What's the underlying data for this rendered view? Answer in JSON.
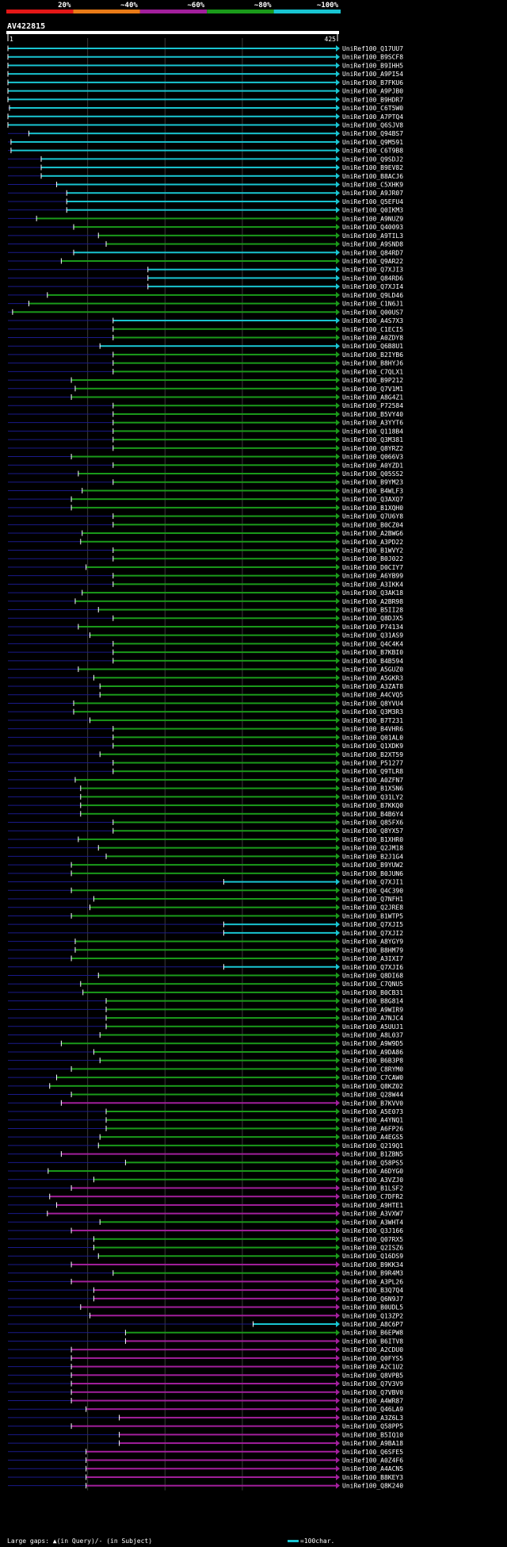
{
  "chart_data": {
    "type": "alignment-overview",
    "title": "AV422815",
    "query_length": 425,
    "axis_start_label": "1",
    "axis_end_label": "425",
    "scale_legend": {
      "label": "=100char.",
      "color": "#19c5d2"
    },
    "identity_colors": [
      {
        "label": "20%",
        "color": "#e41717"
      },
      {
        "label": "~40%",
        "color": "#e87a17"
      },
      {
        "label": "~60%",
        "color": "#a21f9c"
      },
      {
        "label": "~80%",
        "color": "#1a9a1a"
      },
      {
        "label": "~100%",
        "color": "#19c5d2"
      }
    ],
    "legend_text": "Large gaps: ▲(in Query)/- (in Subject)",
    "hits": [
      {
        "id": "UniRef100_Q17UU7",
        "s": 1,
        "e": 425,
        "c": "c"
      },
      {
        "id": "UniRef100_B9SCF8",
        "s": 1,
        "e": 425,
        "c": "c"
      },
      {
        "id": "UniRef100_B9IHH5",
        "s": 1,
        "e": 425,
        "c": "c"
      },
      {
        "id": "UniRef100_A9PI54",
        "s": 1,
        "e": 425,
        "c": "c"
      },
      {
        "id": "UniRef100_B7FKU6",
        "s": 1,
        "e": 425,
        "c": "c"
      },
      {
        "id": "UniRef100_A9PJB0",
        "s": 1,
        "e": 425,
        "c": "c"
      },
      {
        "id": "UniRef100_B9HDR7",
        "s": 1,
        "e": 425,
        "c": "c"
      },
      {
        "id": "UniRef100_C6T5W0",
        "s": 3,
        "e": 425,
        "c": "c"
      },
      {
        "id": "UniRef100_A7PTQ4",
        "s": 1,
        "e": 425,
        "c": "c"
      },
      {
        "id": "UniRef100_Q6SJV8",
        "s": 1,
        "e": 425,
        "c": "c"
      },
      {
        "id": "UniRef100_Q94BS7",
        "s": 28,
        "e": 425,
        "c": "c"
      },
      {
        "id": "UniRef100_Q9M591",
        "s": 5,
        "e": 425,
        "c": "c"
      },
      {
        "id": "UniRef100_C6T9B8",
        "s": 5,
        "e": 425,
        "c": "c"
      },
      {
        "id": "UniRef100_Q9SDJ2",
        "s": 44,
        "e": 425,
        "c": "c"
      },
      {
        "id": "UniRef100_B9EV82",
        "s": 44,
        "e": 425,
        "c": "c"
      },
      {
        "id": "UniRef100_B8ACJ6",
        "s": 44,
        "e": 425,
        "c": "c"
      },
      {
        "id": "UniRef100_C5XHK9",
        "s": 64,
        "e": 425,
        "c": "c"
      },
      {
        "id": "UniRef100_A9JR07",
        "s": 77,
        "e": 425,
        "c": "c"
      },
      {
        "id": "UniRef100_Q5EFU4",
        "s": 77,
        "e": 425,
        "c": "c"
      },
      {
        "id": "UniRef100_Q0IKM3",
        "s": 77,
        "e": 425,
        "c": "c"
      },
      {
        "id": "UniRef100_A9NUZ9",
        "s": 38,
        "e": 425,
        "c": "g"
      },
      {
        "id": "UniRef100_Q40093",
        "s": 86,
        "e": 425,
        "c": "g"
      },
      {
        "id": "UniRef100_A9TIL3",
        "s": 118,
        "e": 425,
        "c": "g"
      },
      {
        "id": "UniRef100_A9SND8",
        "s": 128,
        "e": 425,
        "c": "g"
      },
      {
        "id": "UniRef100_Q84RD7",
        "s": 86,
        "e": 425,
        "c": "c"
      },
      {
        "id": "UniRef100_Q9AR22",
        "s": 70,
        "e": 425,
        "c": "g"
      },
      {
        "id": "UniRef100_Q7XJI3",
        "s": 182,
        "e": 425,
        "c": "c"
      },
      {
        "id": "UniRef100_Q84RD6",
        "s": 182,
        "e": 425,
        "c": "c"
      },
      {
        "id": "UniRef100_Q7XJI4",
        "s": 182,
        "e": 425,
        "c": "c"
      },
      {
        "id": "UniRef100_Q9LD46",
        "s": 52,
        "e": 425,
        "c": "g"
      },
      {
        "id": "UniRef100_C1N6J1",
        "s": 28,
        "e": 425,
        "c": "g"
      },
      {
        "id": "UniRef100_Q00US7",
        "s": 7,
        "e": 425,
        "c": "g"
      },
      {
        "id": "UniRef100_A4S7X3",
        "s": 137,
        "e": 425,
        "c": "c"
      },
      {
        "id": "UniRef100_C1ECI5",
        "s": 137,
        "e": 425,
        "c": "g"
      },
      {
        "id": "UniRef100_A0ZDY8",
        "s": 137,
        "e": 425,
        "c": "g"
      },
      {
        "id": "UniRef100_Q6B8U1",
        "s": 120,
        "e": 425,
        "c": "c"
      },
      {
        "id": "UniRef100_B2IYB6",
        "s": 137,
        "e": 425,
        "c": "g"
      },
      {
        "id": "UniRef100_B8HYJ6",
        "s": 137,
        "e": 425,
        "c": "g"
      },
      {
        "id": "UniRef100_C7QLX1",
        "s": 137,
        "e": 425,
        "c": "g"
      },
      {
        "id": "UniRef100_B9P212",
        "s": 83,
        "e": 425,
        "c": "g"
      },
      {
        "id": "UniRef100_Q7V1M1",
        "s": 88,
        "e": 425,
        "c": "g"
      },
      {
        "id": "UniRef100_A8G4Z1",
        "s": 83,
        "e": 425,
        "c": "g"
      },
      {
        "id": "UniRef100_P72584",
        "s": 137,
        "e": 425,
        "c": "g"
      },
      {
        "id": "UniRef100_B5VY40",
        "s": 137,
        "e": 425,
        "c": "g"
      },
      {
        "id": "UniRef100_A3YYT6",
        "s": 137,
        "e": 425,
        "c": "g"
      },
      {
        "id": "UniRef100_Q118B4",
        "s": 137,
        "e": 425,
        "c": "g"
      },
      {
        "id": "UniRef100_Q3M381",
        "s": 137,
        "e": 425,
        "c": "g"
      },
      {
        "id": "UniRef100_Q8YRZ2",
        "s": 137,
        "e": 425,
        "c": "g"
      },
      {
        "id": "UniRef100_Q066V3",
        "s": 83,
        "e": 425,
        "c": "g"
      },
      {
        "id": "UniRef100_A0YZD1",
        "s": 137,
        "e": 425,
        "c": "g"
      },
      {
        "id": "UniRef100_Q05SS2",
        "s": 92,
        "e": 425,
        "c": "g"
      },
      {
        "id": "UniRef100_B9YM23",
        "s": 137,
        "e": 425,
        "c": "g"
      },
      {
        "id": "UniRef100_B4WLF3",
        "s": 97,
        "e": 425,
        "c": "g"
      },
      {
        "id": "UniRef100_Q3AXQ7",
        "s": 83,
        "e": 425,
        "c": "g"
      },
      {
        "id": "UniRef100_B1XQH0",
        "s": 83,
        "e": 425,
        "c": "g"
      },
      {
        "id": "UniRef100_Q7U6Y8",
        "s": 137,
        "e": 425,
        "c": "g"
      },
      {
        "id": "UniRef100_B0CZ04",
        "s": 137,
        "e": 425,
        "c": "g"
      },
      {
        "id": "UniRef100_A2BWG6",
        "s": 97,
        "e": 425,
        "c": "g"
      },
      {
        "id": "UniRef100_A3PD22",
        "s": 95,
        "e": 425,
        "c": "g"
      },
      {
        "id": "UniRef100_B1WVY2",
        "s": 137,
        "e": 425,
        "c": "g"
      },
      {
        "id": "UniRef100_B0J022",
        "s": 137,
        "e": 425,
        "c": "g"
      },
      {
        "id": "UniRef100_D0CIY7",
        "s": 102,
        "e": 425,
        "c": "g"
      },
      {
        "id": "UniRef100_A6YB99",
        "s": 137,
        "e": 425,
        "c": "g"
      },
      {
        "id": "UniRef100_A3IKK4",
        "s": 137,
        "e": 425,
        "c": "g"
      },
      {
        "id": "UniRef100_Q3AK18",
        "s": 97,
        "e": 425,
        "c": "g"
      },
      {
        "id": "UniRef100_A2BR98",
        "s": 88,
        "e": 425,
        "c": "g"
      },
      {
        "id": "UniRef100_B5II28",
        "s": 118,
        "e": 425,
        "c": "g"
      },
      {
        "id": "UniRef100_Q8DJX5",
        "s": 137,
        "e": 425,
        "c": "g"
      },
      {
        "id": "UniRef100_P74134",
        "s": 92,
        "e": 425,
        "c": "g"
      },
      {
        "id": "UniRef100_Q31AS9",
        "s": 107,
        "e": 425,
        "c": "g"
      },
      {
        "id": "UniRef100_Q4C4K4",
        "s": 137,
        "e": 425,
        "c": "g"
      },
      {
        "id": "UniRef100_B7KBI0",
        "s": 137,
        "e": 425,
        "c": "g"
      },
      {
        "id": "UniRef100_B4B594",
        "s": 137,
        "e": 425,
        "c": "g"
      },
      {
        "id": "UniRef100_A5GUZ0",
        "s": 92,
        "e": 425,
        "c": "g"
      },
      {
        "id": "UniRef100_A5GKR3",
        "s": 112,
        "e": 425,
        "c": "g"
      },
      {
        "id": "UniRef100_A3ZAT8",
        "s": 120,
        "e": 425,
        "c": "g"
      },
      {
        "id": "UniRef100_A4CVQ5",
        "s": 120,
        "e": 425,
        "c": "g"
      },
      {
        "id": "UniRef100_Q8YVU4",
        "s": 86,
        "e": 425,
        "c": "g"
      },
      {
        "id": "UniRef100_Q3M3R3",
        "s": 86,
        "e": 425,
        "c": "g"
      },
      {
        "id": "UniRef100_B7T231",
        "s": 107,
        "e": 425,
        "c": "g"
      },
      {
        "id": "UniRef100_B4VHR6",
        "s": 137,
        "e": 425,
        "c": "g"
      },
      {
        "id": "UniRef100_Q01AL0",
        "s": 137,
        "e": 425,
        "c": "g"
      },
      {
        "id": "UniRef100_Q1XDK9",
        "s": 137,
        "e": 425,
        "c": "g"
      },
      {
        "id": "UniRef100_B2XT59",
        "s": 120,
        "e": 425,
        "c": "g"
      },
      {
        "id": "UniRef100_P51277",
        "s": 137,
        "e": 425,
        "c": "g"
      },
      {
        "id": "UniRef100_Q9TLR8",
        "s": 137,
        "e": 425,
        "c": "g"
      },
      {
        "id": "UniRef100_A0ZFN7",
        "s": 88,
        "e": 425,
        "c": "g"
      },
      {
        "id": "UniRef100_B1X5N6",
        "s": 95,
        "e": 425,
        "c": "g"
      },
      {
        "id": "UniRef100_Q31LY2",
        "s": 95,
        "e": 425,
        "c": "g"
      },
      {
        "id": "UniRef100_B7KKQ0",
        "s": 95,
        "e": 425,
        "c": "g"
      },
      {
        "id": "UniRef100_B4B6Y4",
        "s": 95,
        "e": 425,
        "c": "g"
      },
      {
        "id": "UniRef100_Q85FX6",
        "s": 137,
        "e": 425,
        "c": "g"
      },
      {
        "id": "UniRef100_Q8YX57",
        "s": 137,
        "e": 425,
        "c": "g"
      },
      {
        "id": "UniRef100_B1XHR0",
        "s": 92,
        "e": 425,
        "c": "g"
      },
      {
        "id": "UniRef100_Q2JM18",
        "s": 118,
        "e": 425,
        "c": "g"
      },
      {
        "id": "UniRef100_B2J1G4",
        "s": 128,
        "e": 425,
        "c": "g"
      },
      {
        "id": "UniRef100_B9YUW2",
        "s": 83,
        "e": 425,
        "c": "g"
      },
      {
        "id": "UniRef100_B0JUN6",
        "s": 83,
        "e": 425,
        "c": "g"
      },
      {
        "id": "UniRef100_Q7XJI1",
        "s": 280,
        "e": 425,
        "c": "c"
      },
      {
        "id": "UniRef100_Q4C390",
        "s": 83,
        "e": 425,
        "c": "g"
      },
      {
        "id": "UniRef100_Q7NFH1",
        "s": 112,
        "e": 425,
        "c": "g"
      },
      {
        "id": "UniRef100_Q2JRE8",
        "s": 107,
        "e": 425,
        "c": "g"
      },
      {
        "id": "UniRef100_B1WTP5",
        "s": 83,
        "e": 425,
        "c": "g"
      },
      {
        "id": "UniRef100_Q7XJI5",
        "s": 280,
        "e": 425,
        "c": "c"
      },
      {
        "id": "UniRef100_Q7XJI2",
        "s": 280,
        "e": 425,
        "c": "c"
      },
      {
        "id": "UniRef100_A8YGY9",
        "s": 88,
        "e": 425,
        "c": "g"
      },
      {
        "id": "UniRef100_B8HM79",
        "s": 88,
        "e": 425,
        "c": "g"
      },
      {
        "id": "UniRef100_A3IXI7",
        "s": 83,
        "e": 425,
        "c": "g"
      },
      {
        "id": "UniRef100_Q7XJI6",
        "s": 280,
        "e": 425,
        "c": "c"
      },
      {
        "id": "UniRef100_Q8DI68",
        "s": 118,
        "e": 425,
        "c": "g"
      },
      {
        "id": "UniRef100_C7QNU5",
        "s": 95,
        "e": 425,
        "c": "g"
      },
      {
        "id": "UniRef100_B0CB31",
        "s": 98,
        "e": 425,
        "c": "g"
      },
      {
        "id": "UniRef100_B8G814",
        "s": 128,
        "e": 425,
        "c": "g"
      },
      {
        "id": "UniRef100_A9WIR9",
        "s": 128,
        "e": 425,
        "c": "g"
      },
      {
        "id": "UniRef100_A7NJC4",
        "s": 128,
        "e": 425,
        "c": "g"
      },
      {
        "id": "UniRef100_A5UUJ1",
        "s": 128,
        "e": 425,
        "c": "g"
      },
      {
        "id": "UniRef100_A8L037",
        "s": 120,
        "e": 425,
        "c": "g"
      },
      {
        "id": "UniRef100_A9W9D5",
        "s": 70,
        "e": 425,
        "c": "g"
      },
      {
        "id": "UniRef100_A9DA86",
        "s": 112,
        "e": 425,
        "c": "g"
      },
      {
        "id": "UniRef100_B6B3P8",
        "s": 120,
        "e": 425,
        "c": "g"
      },
      {
        "id": "UniRef100_C8RYM0",
        "s": 83,
        "e": 425,
        "c": "g"
      },
      {
        "id": "UniRef100_C7CAW0",
        "s": 64,
        "e": 425,
        "c": "g"
      },
      {
        "id": "UniRef100_Q8KZ02",
        "s": 55,
        "e": 425,
        "c": "g"
      },
      {
        "id": "UniRef100_Q28W44",
        "s": 83,
        "e": 425,
        "c": "g"
      },
      {
        "id": "UniRef100_B7KVV0",
        "s": 70,
        "e": 425,
        "c": "m"
      },
      {
        "id": "UniRef100_A5E073",
        "s": 128,
        "e": 425,
        "c": "g"
      },
      {
        "id": "UniRef100_A4YNQ1",
        "s": 128,
        "e": 425,
        "c": "g"
      },
      {
        "id": "UniRef100_A6FP26",
        "s": 128,
        "e": 425,
        "c": "g"
      },
      {
        "id": "UniRef100_A4EGS5",
        "s": 120,
        "e": 425,
        "c": "g"
      },
      {
        "id": "UniRef100_Q219Q1",
        "s": 118,
        "e": 425,
        "c": "g"
      },
      {
        "id": "UniRef100_B1ZBN5",
        "s": 70,
        "e": 425,
        "c": "m"
      },
      {
        "id": "UniRef100_Q58PS5",
        "s": 153,
        "e": 425,
        "c": "g"
      },
      {
        "id": "UniRef100_A6DYG0",
        "s": 53,
        "e": 425,
        "c": "g"
      },
      {
        "id": "UniRef100_A3VZJ0",
        "s": 112,
        "e": 425,
        "c": "g"
      },
      {
        "id": "UniRef100_B1LSF2",
        "s": 83,
        "e": 425,
        "c": "m"
      },
      {
        "id": "UniRef100_C7DFR2",
        "s": 55,
        "e": 425,
        "c": "m"
      },
      {
        "id": "UniRef100_A9HTE1",
        "s": 64,
        "e": 425,
        "c": "m"
      },
      {
        "id": "UniRef100_A3VXW7",
        "s": 52,
        "e": 425,
        "c": "m"
      },
      {
        "id": "UniRef100_A3WHT4",
        "s": 120,
        "e": 425,
        "c": "g"
      },
      {
        "id": "UniRef100_Q3J166",
        "s": 83,
        "e": 425,
        "c": "m"
      },
      {
        "id": "UniRef100_Q07RX5",
        "s": 112,
        "e": 425,
        "c": "g"
      },
      {
        "id": "UniRef100_Q2ISZ6",
        "s": 112,
        "e": 425,
        "c": "g"
      },
      {
        "id": "UniRef100_Q16DS9",
        "s": 118,
        "e": 425,
        "c": "g"
      },
      {
        "id": "UniRef100_B9KK34",
        "s": 83,
        "e": 425,
        "c": "m"
      },
      {
        "id": "UniRef100_B9R4M3",
        "s": 137,
        "e": 425,
        "c": "g"
      },
      {
        "id": "UniRef100_A3PL26",
        "s": 83,
        "e": 425,
        "c": "m"
      },
      {
        "id": "UniRef100_B3Q7Q4",
        "s": 112,
        "e": 425,
        "c": "m"
      },
      {
        "id": "UniRef100_Q6N9J7",
        "s": 112,
        "e": 425,
        "c": "m"
      },
      {
        "id": "UniRef100_B0UDL5",
        "s": 95,
        "e": 425,
        "c": "m"
      },
      {
        "id": "UniRef100_Q13ZP2",
        "s": 107,
        "e": 425,
        "c": "m"
      },
      {
        "id": "UniRef100_A8C6P7",
        "s": 318,
        "e": 425,
        "c": "c"
      },
      {
        "id": "UniRef100_B6EPW8",
        "s": 153,
        "e": 425,
        "c": "g"
      },
      {
        "id": "UniRef100_B6ITV8",
        "s": 153,
        "e": 425,
        "c": "m"
      },
      {
        "id": "UniRef100_A2CDU0",
        "s": 83,
        "e": 425,
        "c": "m"
      },
      {
        "id": "UniRef100_Q0FYS5",
        "s": 83,
        "e": 425,
        "c": "m"
      },
      {
        "id": "UniRef100_A2C1U2",
        "s": 83,
        "e": 425,
        "c": "m"
      },
      {
        "id": "UniRef100_Q8VPB5",
        "s": 83,
        "e": 425,
        "c": "m"
      },
      {
        "id": "UniRef100_Q7V3V9",
        "s": 83,
        "e": 425,
        "c": "m"
      },
      {
        "id": "UniRef100_Q7VBV0",
        "s": 83,
        "e": 425,
        "c": "m"
      },
      {
        "id": "UniRef100_A4WR87",
        "s": 83,
        "e": 425,
        "c": "m"
      },
      {
        "id": "UniRef100_Q46LA9",
        "s": 102,
        "e": 425,
        "c": "m"
      },
      {
        "id": "UniRef100_A3Z6L3",
        "s": 145,
        "e": 425,
        "c": "m"
      },
      {
        "id": "UniRef100_Q58PP5",
        "s": 83,
        "e": 425,
        "c": "m"
      },
      {
        "id": "UniRef100_B5IQ10",
        "s": 145,
        "e": 425,
        "c": "m"
      },
      {
        "id": "UniRef100_A9BA18",
        "s": 145,
        "e": 425,
        "c": "m"
      },
      {
        "id": "UniRef100_Q6SFE5",
        "s": 102,
        "e": 425,
        "c": "m"
      },
      {
        "id": "UniRef100_A0Z4F6",
        "s": 102,
        "e": 425,
        "c": "m"
      },
      {
        "id": "UniRef100_A4ACN5",
        "s": 102,
        "e": 425,
        "c": "m"
      },
      {
        "id": "UniRef100_B8KEY3",
        "s": 102,
        "e": 425,
        "c": "m"
      },
      {
        "id": "UniRef100_Q8K240",
        "s": 102,
        "e": 425,
        "c": "m"
      }
    ]
  }
}
